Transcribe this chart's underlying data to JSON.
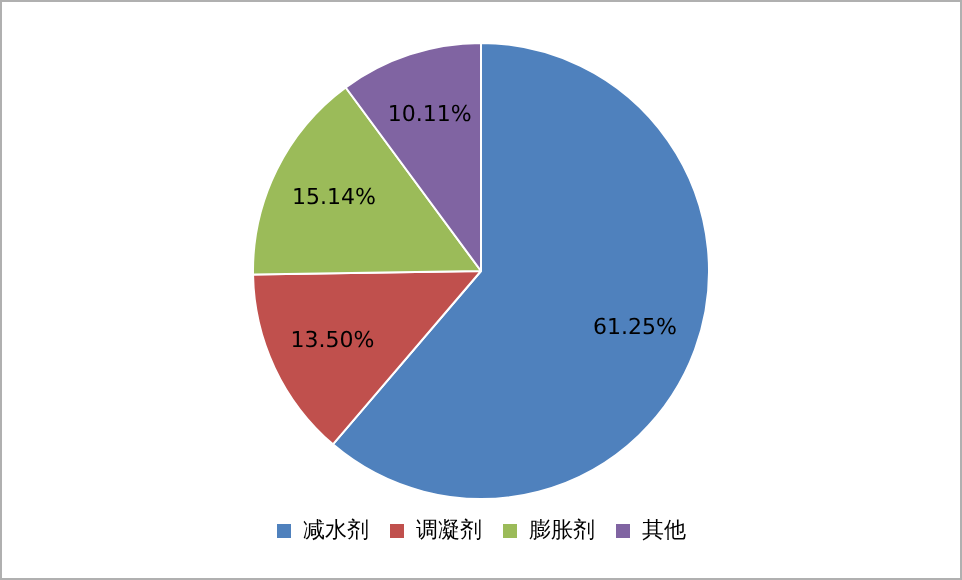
{
  "chart_data": {
    "type": "pie",
    "categories": [
      "减水剂",
      "调凝剂",
      "膨胀剂",
      "其他"
    ],
    "values": [
      61.25,
      13.5,
      15.14,
      10.11
    ],
    "colors": [
      "#4f81bd",
      "#c0504d",
      "#9bbb59",
      "#8064a2"
    ],
    "value_labels": [
      "61.25%",
      "13.50%",
      "15.14%",
      "10.11%"
    ],
    "legend": "bottom"
  }
}
